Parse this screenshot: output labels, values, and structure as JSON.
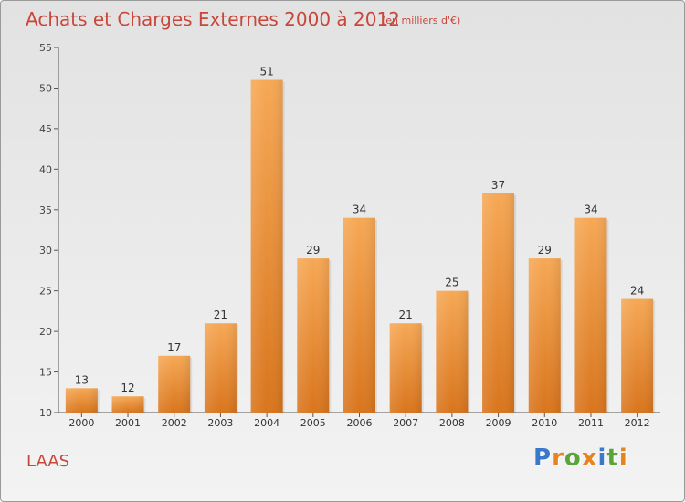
{
  "header": {
    "title": "Achats et Charges Externes 2000 à 2012",
    "subtitle": "(en milliers d'€)"
  },
  "footer": {
    "location": "LAAS",
    "logo_text": "Proxiti"
  },
  "colors": {
    "bar_top": "#f6a855",
    "bar_bottom": "#d9751d",
    "title": "#c8463a",
    "logo_letters": [
      "#3a78c9",
      "#e8841e",
      "#5aa53a",
      "#e8841e",
      "#3a78c9",
      "#5aa53a",
      "#e8841e"
    ]
  },
  "chart_data": {
    "type": "bar",
    "title": "Achats et Charges Externes 2000 à 2012",
    "categories": [
      "2000",
      "2001",
      "2002",
      "2003",
      "2004",
      "2005",
      "2006",
      "2007",
      "2008",
      "2009",
      "2010",
      "2011",
      "2012"
    ],
    "values": [
      13,
      12,
      17,
      21,
      51,
      29,
      34,
      21,
      25,
      37,
      29,
      34,
      24
    ],
    "ylim": [
      10,
      55
    ],
    "yticks": [
      10,
      15,
      20,
      25,
      30,
      35,
      40,
      45,
      50,
      55
    ],
    "grid": false,
    "legend": "none"
  }
}
